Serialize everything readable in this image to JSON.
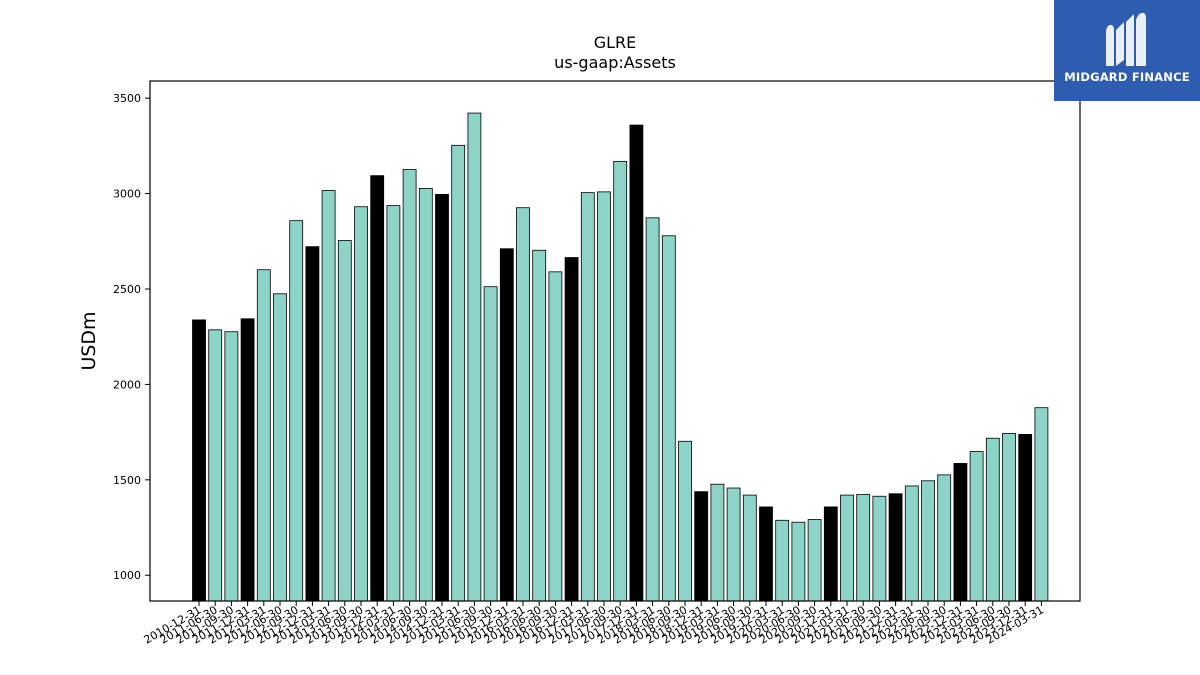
{
  "chart_data": {
    "type": "bar",
    "title": "GLRE",
    "subtitle": "us-gaap:Assets",
    "ylabel": "USDm",
    "xlabel": "",
    "ylim": [
      865,
      3590
    ],
    "yticks": [
      1000,
      1500,
      2000,
      2500,
      3000,
      3500
    ],
    "colors": {
      "default": "#8dd3c7",
      "highlight": "#000000",
      "edge": "#000000"
    },
    "categories": [
      "2010-12-31",
      "2011-06-30",
      "2011-09-30",
      "2011-12-31",
      "2012-03-31",
      "2012-06-30",
      "2012-09-30",
      "2012-12-31",
      "2013-03-31",
      "2013-06-30",
      "2013-09-30",
      "2013-12-31",
      "2014-03-31",
      "2014-06-30",
      "2014-09-30",
      "2014-12-31",
      "2015-03-31",
      "2015-06-30",
      "2015-09-30",
      "2015-12-31",
      "2016-03-31",
      "2016-06-30",
      "2016-09-30",
      "2016-12-31",
      "2017-03-31",
      "2017-06-30",
      "2017-09-30",
      "2017-12-31",
      "2018-03-31",
      "2018-06-30",
      "2018-09-30",
      "2018-12-31",
      "2019-03-31",
      "2019-06-30",
      "2019-09-30",
      "2019-12-31",
      "2020-03-31",
      "2020-06-30",
      "2020-09-30",
      "2020-12-31",
      "2021-03-31",
      "2021-06-30",
      "2021-09-30",
      "2021-12-31",
      "2022-03-31",
      "2022-06-30",
      "2022-09-30",
      "2022-12-31",
      "2023-03-31",
      "2023-06-30",
      "2023-09-30",
      "2023-12-31",
      "2024-03-31"
    ],
    "values": [
      2338,
      2286,
      2276,
      2344,
      2601,
      2475,
      2858,
      2722,
      3016,
      2754,
      2931,
      3094,
      2937,
      3126,
      3027,
      2996,
      3253,
      3422,
      2512,
      2711,
      2926,
      2703,
      2590,
      2665,
      3005,
      3009,
      3169,
      3359,
      2873,
      2779,
      1702,
      1438,
      1477,
      1457,
      1420,
      1358,
      1288,
      1278,
      1292,
      1358,
      1420,
      1423,
      1414,
      1427,
      1468,
      1495,
      1526,
      1586,
      1648,
      1718,
      1743,
      1738,
      1878
    ],
    "highlight": [
      true,
      false,
      false,
      true,
      false,
      false,
      false,
      true,
      false,
      false,
      false,
      true,
      false,
      false,
      false,
      true,
      false,
      false,
      false,
      true,
      false,
      false,
      false,
      true,
      false,
      false,
      false,
      true,
      false,
      false,
      false,
      true,
      false,
      false,
      false,
      true,
      false,
      false,
      false,
      true,
      false,
      false,
      false,
      true,
      false,
      false,
      false,
      true,
      false,
      false,
      false,
      true,
      false
    ]
  },
  "logo": {
    "text": "MIDGARD FINANCE",
    "icon": "midgard-logo-icon",
    "background": "#2e5cae"
  }
}
